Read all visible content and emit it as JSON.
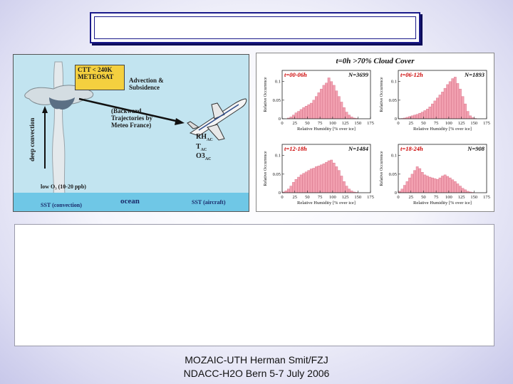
{
  "title_box": {
    "text": ""
  },
  "diagram": {
    "ctt_label": "CTT < 240K\nMETEOSAT",
    "advection_label": "Advection &\nSubsidence",
    "trajectories_label": "(Backward\nTrajectories by\nMeteo France)",
    "rh_label": "RH",
    "rh_sub": "AC",
    "t_label": "T",
    "t_sub": "AC",
    "o3_label": "O3",
    "o3_sub": "AC",
    "deep_convection_label": "deep convection",
    "low_o3_label": "low O₃ (10-20 ppb)",
    "ocean_label": "ocean",
    "sst_convection_label": "SST (convection)",
    "sst_aircraft_label": "SST (aircraft)"
  },
  "plots": {
    "header": "t=0h >70% Cloud Cover",
    "x_axis_label": "Relative Humidity [% over ice]",
    "y_axis_label": "Relative Occurrence",
    "x_ticks": [
      "0",
      "25",
      "50",
      "75",
      "100",
      "125",
      "150",
      "175"
    ],
    "y_ticks": [
      "0",
      "0.05",
      "0.1"
    ],
    "bar_color": "#f2a0b0"
  },
  "chart_data": [
    {
      "type": "bar",
      "title": "t=00-06h",
      "annotation": "N=3699",
      "x": [
        5,
        10,
        15,
        20,
        25,
        30,
        35,
        40,
        45,
        50,
        55,
        60,
        65,
        70,
        75,
        80,
        85,
        90,
        95,
        100,
        105,
        110,
        115,
        120,
        125,
        130,
        135,
        140,
        145,
        150,
        155,
        160,
        165,
        170
      ],
      "values": [
        0.0,
        0.0,
        0.002,
        0.005,
        0.01,
        0.016,
        0.02,
        0.025,
        0.03,
        0.034,
        0.038,
        0.042,
        0.05,
        0.06,
        0.07,
        0.08,
        0.09,
        0.096,
        0.11,
        0.1,
        0.09,
        0.075,
        0.06,
        0.045,
        0.03,
        0.018,
        0.01,
        0.005,
        0.002,
        0.001,
        0,
        0,
        0,
        0
      ],
      "xlabel": "Relative Humidity [% over ice]",
      "ylabel": "Relative Occurrence",
      "xlim": [
        0,
        175
      ],
      "ylim": [
        0,
        0.13
      ]
    },
    {
      "type": "bar",
      "title": "t=06-12h",
      "annotation": "N=1893",
      "x": [
        5,
        10,
        15,
        20,
        25,
        30,
        35,
        40,
        45,
        50,
        55,
        60,
        65,
        70,
        75,
        80,
        85,
        90,
        95,
        100,
        105,
        110,
        115,
        120,
        125,
        130,
        135,
        140,
        145,
        150,
        155,
        160,
        165,
        170
      ],
      "values": [
        0.0,
        0.001,
        0.002,
        0.004,
        0.006,
        0.008,
        0.01,
        0.012,
        0.015,
        0.018,
        0.022,
        0.026,
        0.032,
        0.04,
        0.048,
        0.056,
        0.064,
        0.072,
        0.082,
        0.092,
        0.1,
        0.108,
        0.112,
        0.095,
        0.08,
        0.06,
        0.04,
        0.02,
        0.008,
        0.003,
        0.001,
        0,
        0,
        0
      ],
      "xlabel": "Relative Humidity [% over ice]",
      "ylabel": "Relative Occurrence",
      "xlim": [
        0,
        175
      ],
      "ylim": [
        0,
        0.13
      ]
    },
    {
      "type": "bar",
      "title": "t=12-18h",
      "annotation": "N=1484",
      "x": [
        5,
        10,
        15,
        20,
        25,
        30,
        35,
        40,
        45,
        50,
        55,
        60,
        65,
        70,
        75,
        80,
        85,
        90,
        95,
        100,
        105,
        110,
        115,
        120,
        125,
        130,
        135,
        140,
        145,
        150,
        155,
        160,
        165,
        170
      ],
      "values": [
        0.002,
        0.005,
        0.01,
        0.018,
        0.028,
        0.036,
        0.042,
        0.048,
        0.052,
        0.056,
        0.06,
        0.064,
        0.066,
        0.07,
        0.072,
        0.075,
        0.078,
        0.082,
        0.086,
        0.088,
        0.08,
        0.07,
        0.06,
        0.045,
        0.03,
        0.018,
        0.01,
        0.005,
        0.002,
        0.001,
        0,
        0,
        0,
        0
      ],
      "xlabel": "Relative Humidity [% over ice]",
      "ylabel": "Relative Occurrence",
      "xlim": [
        0,
        175
      ],
      "ylim": [
        0,
        0.13
      ]
    },
    {
      "type": "bar",
      "title": "t=18-24h",
      "annotation": "N=908",
      "x": [
        5,
        10,
        15,
        20,
        25,
        30,
        35,
        40,
        45,
        50,
        55,
        60,
        65,
        70,
        75,
        80,
        85,
        90,
        95,
        100,
        105,
        110,
        115,
        120,
        125,
        130,
        135,
        140,
        145,
        150,
        155,
        160,
        165,
        170
      ],
      "values": [
        0.004,
        0.01,
        0.02,
        0.03,
        0.04,
        0.05,
        0.06,
        0.07,
        0.065,
        0.055,
        0.048,
        0.045,
        0.042,
        0.04,
        0.038,
        0.036,
        0.04,
        0.045,
        0.048,
        0.044,
        0.04,
        0.035,
        0.03,
        0.024,
        0.018,
        0.012,
        0.008,
        0.004,
        0.002,
        0.001,
        0,
        0,
        0,
        0
      ],
      "xlabel": "Relative Humidity [% over ice]",
      "ylabel": "Relative Occurrence",
      "xlim": [
        0,
        175
      ],
      "ylim": [
        0,
        0.13
      ]
    }
  ],
  "text_box": {
    "text": ""
  },
  "footer": {
    "line1": "MOZAIC-UTH  Herman Smit/FZJ",
    "line2": "NDACC-H2O Bern 5-7 July 2006"
  }
}
